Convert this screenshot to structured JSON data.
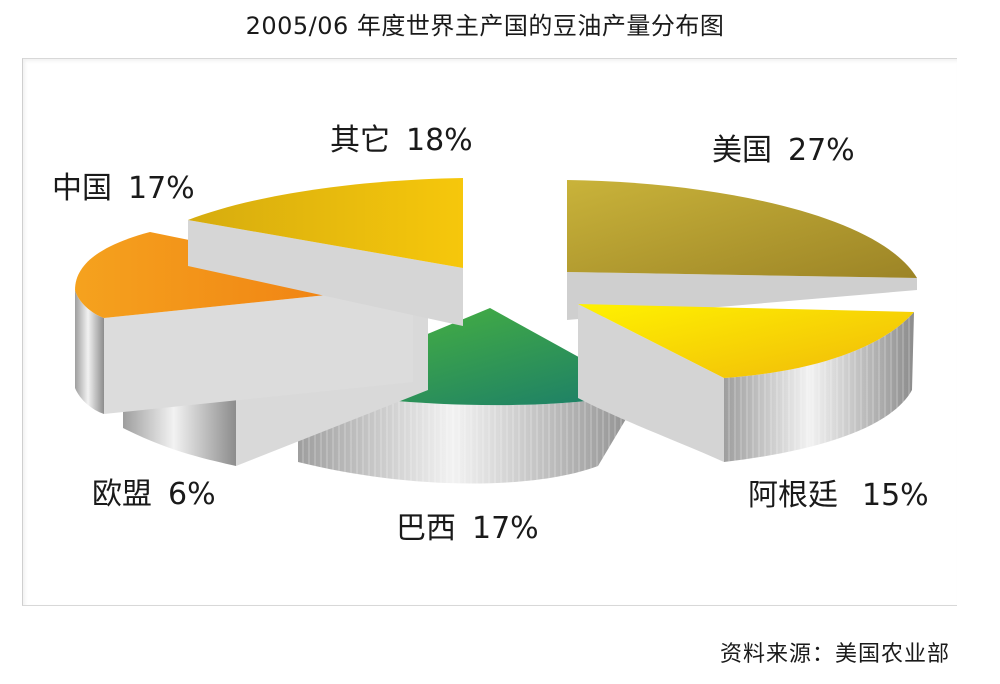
{
  "chart_data": {
    "type": "pie",
    "title": "2005/06 年度世界主产国的豆油产量分布图",
    "slices": [
      {
        "label": "美国",
        "value": 27,
        "value_text": "27%",
        "color": "#b8a02c"
      },
      {
        "label": "阿根廷",
        "value": 15,
        "value_text": "15%",
        "color": "#f4d80a"
      },
      {
        "label": "巴西",
        "value": 17,
        "value_text": "17%",
        "color": "#2f9a48"
      },
      {
        "label": "欧盟",
        "value": 6,
        "value_text": "6%",
        "color": "#d8141a"
      },
      {
        "label": "中国",
        "value": 17,
        "value_text": "17%",
        "color": "#f08c12"
      },
      {
        "label": "其它",
        "value": 18,
        "value_text": "18%",
        "color": "#e0b40c"
      }
    ],
    "source": "资料来源：美国农业部"
  }
}
